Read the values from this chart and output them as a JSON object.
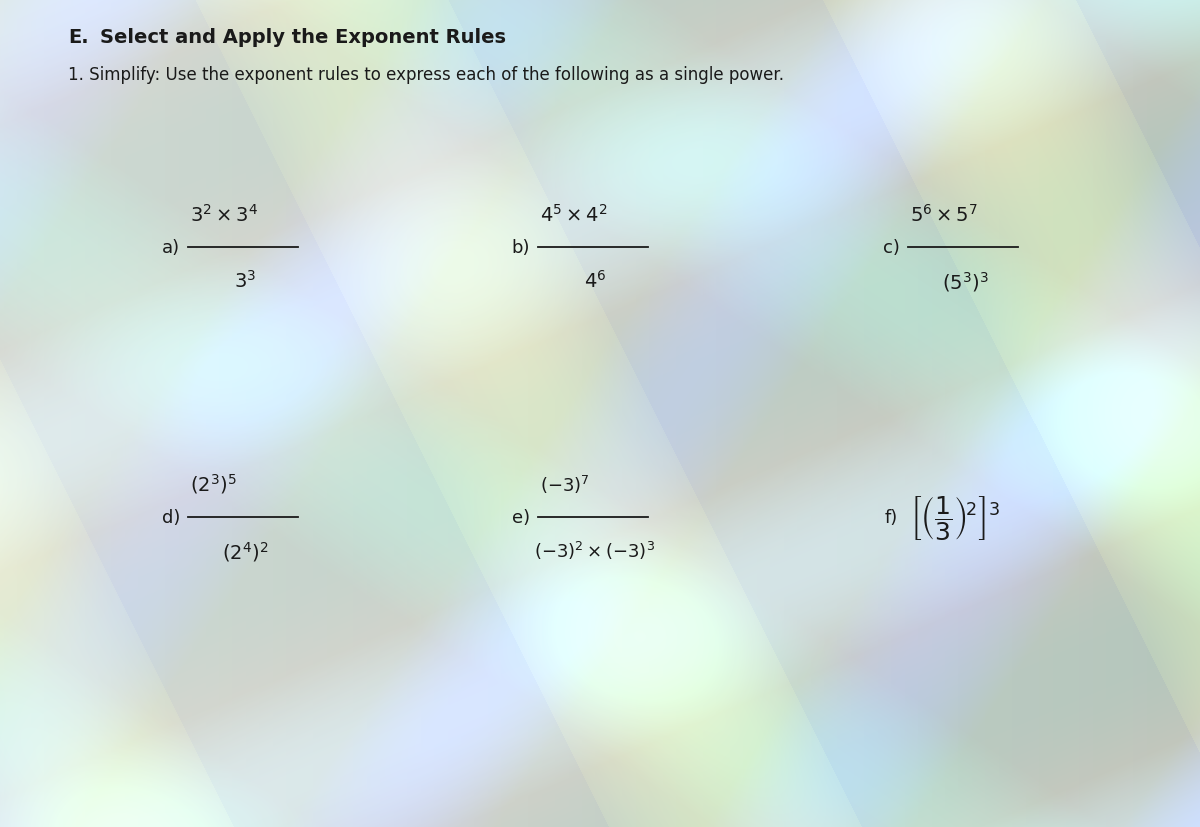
{
  "title_letter": "E.",
  "title_text": "Select and Apply the Exponent Rules",
  "subtitle": "1. Simplify: Use the exponent rules to express each of the following as a single power.",
  "bg_base": "#c8cbc8",
  "text_color": "#1a1a1a",
  "wave_colors": [
    "#7ec8c8",
    "#b8d4a0",
    "#e8e0a0",
    "#a0c8e0",
    "#c8e8f0"
  ],
  "problems_row1": {
    "a_label": "a)",
    "a_num": "$3^2 \\times 3^4$",
    "a_den": "$3^3$",
    "b_label": "b)",
    "b_num": "$4^5 \\times 4^2$",
    "b_den": "$4^6$",
    "c_label": "c)",
    "c_num": "$5^6 \\times 5^7$",
    "c_den": "$(5^3)^3$"
  },
  "problems_row2": {
    "d_label": "d)",
    "d_num": "$(2^3)^5$",
    "d_den": "$(2^4)^2$",
    "e_label": "e)",
    "e_num": "$(-3)^7$",
    "e_den": "$(-3)^2 \\times(-3)^3$",
    "f_label": "f)",
    "f_expr": "$\\left[\\left(\\dfrac{1}{3}\\right)^{\\!2}\\right]^{3}$"
  }
}
